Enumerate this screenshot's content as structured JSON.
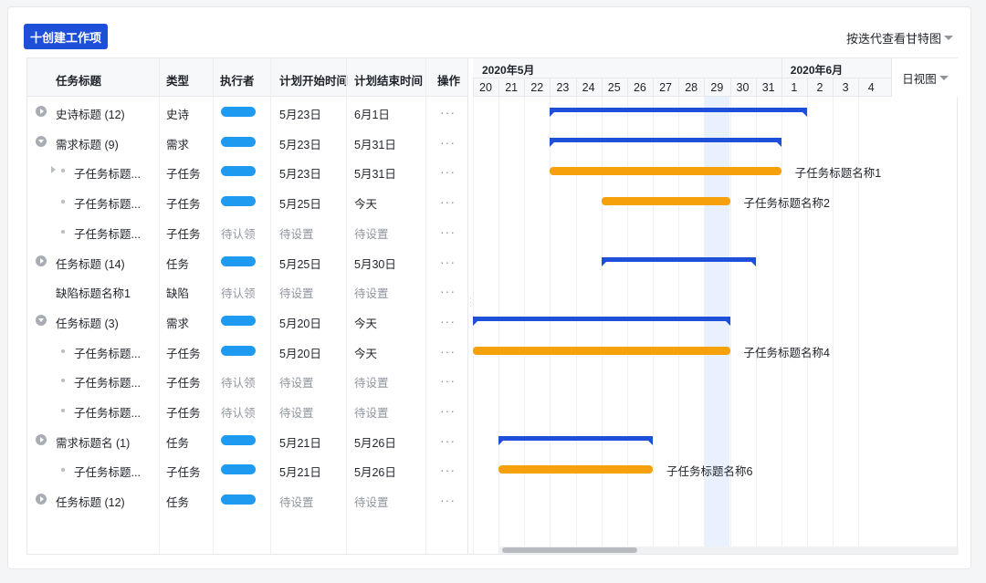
{
  "toolbar": {
    "create_label": "十创建工作项",
    "view_switch_label": "按迭代查看甘特图"
  },
  "table": {
    "headers": {
      "title": "任务标题",
      "type": "类型",
      "assignee": "执行者",
      "start": "计划开始时间",
      "end": "计划结束时间",
      "actions": "操作"
    },
    "rows": [
      {
        "title": "史诗标题 (12)",
        "type": "史诗",
        "assignee": "",
        "start": "5月23日",
        "end": "6月1日",
        "level": 0,
        "icon": "expand"
      },
      {
        "title": "需求标题 (9)",
        "type": "需求",
        "assignee": "",
        "start": "5月23日",
        "end": "5月31日",
        "level": 0,
        "icon": "collapse"
      },
      {
        "title": "子任务标题...",
        "type": "子任务",
        "assignee": "",
        "start": "5月23日",
        "end": "5月31日",
        "level": 1,
        "icon": "sub-expand"
      },
      {
        "title": "子任务标题...",
        "type": "子任务",
        "assignee": "",
        "start": "5月25日",
        "end": "今天",
        "level": 1,
        "icon": "dot"
      },
      {
        "title": "子任务标题...",
        "type": "子任务",
        "assignee": "待认领",
        "start": "待设置",
        "end": "待设置",
        "level": 1,
        "icon": "dot"
      },
      {
        "title": "任务标题 (14)",
        "type": "任务",
        "assignee": "",
        "start": "5月25日",
        "end": "5月30日",
        "level": 0,
        "icon": "expand"
      },
      {
        "title": "缺陷标题名称1",
        "type": "缺陷",
        "assignee": "待认领",
        "start": "待设置",
        "end": "待设置",
        "level": 0,
        "icon": "none"
      },
      {
        "title": "任务标题 (3)",
        "type": "需求",
        "assignee": "",
        "start": "5月20日",
        "end": "今天",
        "level": 0,
        "icon": "collapse"
      },
      {
        "title": "子任务标题...",
        "type": "子任务",
        "assignee": "",
        "start": "5月20日",
        "end": "今天",
        "level": 1,
        "icon": "dot"
      },
      {
        "title": "子任务标题...",
        "type": "子任务",
        "assignee": "待认领",
        "start": "待设置",
        "end": "待设置",
        "level": 1,
        "icon": "dot"
      },
      {
        "title": "子任务标题...",
        "type": "子任务",
        "assignee": "待认领",
        "start": "待设置",
        "end": "待设置",
        "level": 1,
        "icon": "dot"
      },
      {
        "title": "需求标题名 (1)",
        "type": "任务",
        "assignee": "",
        "start": "5月21日",
        "end": "5月26日",
        "level": 0,
        "icon": "expand"
      },
      {
        "title": "子任务标题...",
        "type": "子任务",
        "assignee": "",
        "start": "5月21日",
        "end": "5月26日",
        "level": 1,
        "icon": "dot"
      },
      {
        "title": "任务标题 (12)",
        "type": "任务",
        "assignee": "",
        "start": "待设置",
        "end": "待设置",
        "level": 0,
        "icon": "expand"
      }
    ],
    "more_label": "···"
  },
  "gantt": {
    "months": [
      {
        "label": "2020年5月",
        "first_day": 20
      },
      {
        "label": "2020年6月",
        "first_day": 1
      }
    ],
    "days": [
      "20",
      "21",
      "22",
      "23",
      "24",
      "25",
      "26",
      "27",
      "28",
      "29",
      "30",
      "31",
      "1",
      "2",
      "3",
      "4"
    ],
    "highlight_day": "29",
    "view_label": "日视图",
    "bars": [
      {
        "row": 0,
        "kind": "parent",
        "start": "23",
        "end": "1"
      },
      {
        "row": 1,
        "kind": "parent",
        "start": "23",
        "end": "31"
      },
      {
        "row": 2,
        "kind": "child",
        "start": "23",
        "end": "31",
        "label": "子任务标题名称1"
      },
      {
        "row": 3,
        "kind": "child",
        "start": "25",
        "end": "29",
        "label": "子任务标题名称2"
      },
      {
        "row": 5,
        "kind": "parent",
        "start": "25",
        "end": "30"
      },
      {
        "row": 7,
        "kind": "parent",
        "start": "20",
        "end": "29"
      },
      {
        "row": 8,
        "kind": "child",
        "start": "20",
        "end": "29",
        "label": "子任务标题名称4"
      },
      {
        "row": 11,
        "kind": "parent",
        "start": "21",
        "end": "26"
      },
      {
        "row": 12,
        "kind": "child",
        "start": "21",
        "end": "26",
        "label": "子任务标题名称6"
      }
    ]
  },
  "colors": {
    "primary": "#1d4fd8",
    "child_bar": "#f6a00b",
    "assignee": "#1e9bf0",
    "highlight": "#e8f1fd"
  }
}
